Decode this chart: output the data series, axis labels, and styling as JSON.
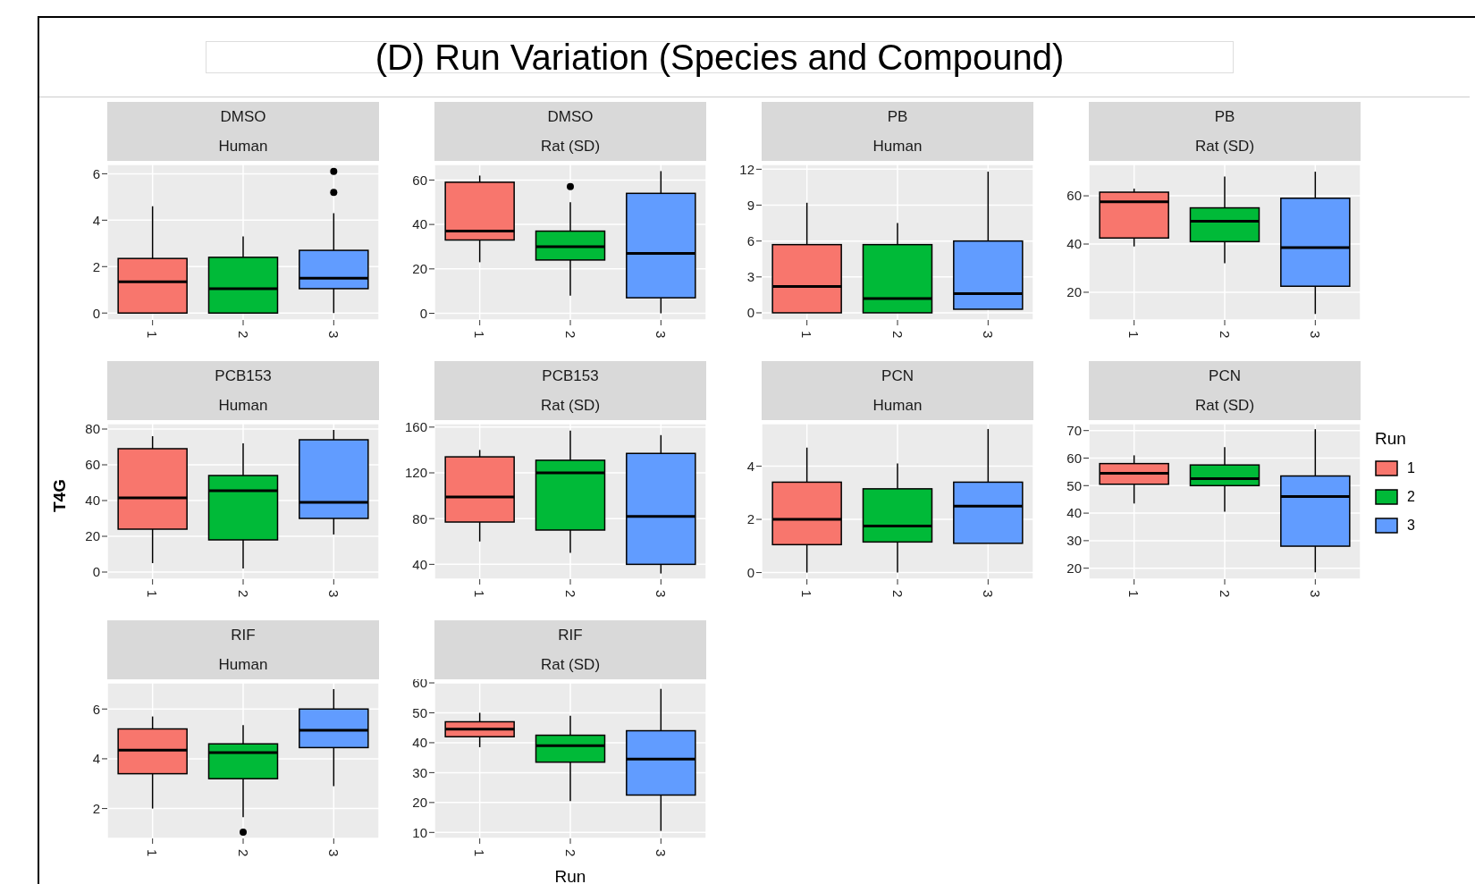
{
  "chart_data": [
    {
      "type": "box",
      "title": "DMSO",
      "subtitle": "Human",
      "annotations": [
        "(D) Run Variation (Species and Compound)"
      ],
      "categories": [
        "1",
        "2",
        "3"
      ],
      "grid": true,
      "ylim": [
        -0.3,
        6.4
      ],
      "yticks": [
        0,
        2,
        4,
        6
      ],
      "series": [
        {
          "color": "#f8766d",
          "boxes": [
            {
              "low": 0,
              "q1": 0,
              "median": 1.35,
              "q3": 2.35,
              "high": 4.6
            },
            null,
            null
          ]
        },
        {
          "color": "#00ba38",
          "boxes": [
            null,
            {
              "low": 0,
              "q1": 0,
              "median": 1.05,
              "q3": 2.4,
              "high": 3.3
            },
            null
          ]
        },
        {
          "color": "#619cff",
          "boxes": [
            null,
            null,
            {
              "low": 0,
              "q1": 1.05,
              "median": 1.5,
              "q3": 2.7,
              "high": 4.3,
              "outliers": [
                5.2,
                6.1
              ]
            }
          ]
        }
      ]
    },
    {
      "type": "box",
      "title": "DMSO",
      "subtitle": "Rat (SD)",
      "categories": [
        "1",
        "2",
        "3"
      ],
      "grid": true,
      "ylim": [
        -3,
        67
      ],
      "yticks": [
        0,
        20,
        40,
        60
      ],
      "series": [
        {
          "color": "#f8766d",
          "boxes": [
            {
              "low": 23,
              "q1": 33,
              "median": 37,
              "q3": 59,
              "high": 62
            },
            null,
            null
          ]
        },
        {
          "color": "#00ba38",
          "boxes": [
            null,
            {
              "low": 8,
              "q1": 24,
              "median": 30,
              "q3": 37,
              "high": 50,
              "outliers": [
                57
              ]
            },
            null
          ]
        },
        {
          "color": "#619cff",
          "boxes": [
            null,
            null,
            {
              "low": 0,
              "q1": 7,
              "median": 27,
              "q3": 54,
              "high": 64
            }
          ]
        }
      ]
    },
    {
      "type": "box",
      "title": "PB",
      "subtitle": "Human",
      "categories": [
        "1",
        "2",
        "3"
      ],
      "grid": true,
      "ylim": [
        -0.6,
        12.4
      ],
      "yticks": [
        0,
        3,
        6,
        9,
        12
      ],
      "series": [
        {
          "color": "#f8766d",
          "boxes": [
            {
              "low": 0,
              "q1": 0,
              "median": 2.2,
              "q3": 5.7,
              "high": 9.2
            },
            null,
            null
          ]
        },
        {
          "color": "#00ba38",
          "boxes": [
            null,
            {
              "low": 0,
              "q1": 0,
              "median": 1.2,
              "q3": 5.7,
              "high": 7.5
            },
            null
          ]
        },
        {
          "color": "#619cff",
          "boxes": [
            null,
            null,
            {
              "low": 0.3,
              "q1": 0.3,
              "median": 1.6,
              "q3": 6,
              "high": 11.8
            }
          ]
        }
      ]
    },
    {
      "type": "box",
      "title": "PB",
      "subtitle": "Rat (SD)",
      "categories": [
        "1",
        "2",
        "3"
      ],
      "grid": true,
      "ylim": [
        8.5,
        73
      ],
      "yticks": [
        20,
        40,
        60
      ],
      "series": [
        {
          "color": "#f8766d",
          "boxes": [
            {
              "low": 39,
              "q1": 42.5,
              "median": 57.5,
              "q3": 61.5,
              "high": 63
            },
            null,
            null
          ]
        },
        {
          "color": "#00ba38",
          "boxes": [
            null,
            {
              "low": 32,
              "q1": 41,
              "median": 49.5,
              "q3": 55,
              "high": 68
            },
            null
          ]
        },
        {
          "color": "#619cff",
          "boxes": [
            null,
            null,
            {
              "low": 11,
              "q1": 22.5,
              "median": 38.5,
              "q3": 59,
              "high": 70
            }
          ]
        }
      ]
    },
    {
      "type": "box",
      "title": "PCB153",
      "subtitle": "Human",
      "ylabel": "T4G",
      "categories": [
        "1",
        "2",
        "3"
      ],
      "grid": true,
      "ylim": [
        -4,
        83
      ],
      "yticks": [
        0,
        20,
        40,
        60,
        80
      ],
      "series": [
        {
          "color": "#f8766d",
          "boxes": [
            {
              "low": 5,
              "q1": 24,
              "median": 41.5,
              "q3": 69,
              "high": 76
            },
            null,
            null
          ]
        },
        {
          "color": "#00ba38",
          "boxes": [
            null,
            {
              "low": 2,
              "q1": 18,
              "median": 45.5,
              "q3": 54,
              "high": 72
            },
            null
          ]
        },
        {
          "color": "#619cff",
          "boxes": [
            null,
            null,
            {
              "low": 21,
              "q1": 30,
              "median": 39,
              "q3": 74,
              "high": 79.5
            }
          ]
        }
      ]
    },
    {
      "type": "box",
      "title": "PCB153",
      "subtitle": "Rat (SD)",
      "categories": [
        "1",
        "2",
        "3"
      ],
      "grid": true,
      "ylim": [
        27,
        163
      ],
      "yticks": [
        40,
        80,
        120,
        160
      ],
      "series": [
        {
          "color": "#f8766d",
          "boxes": [
            {
              "low": 60,
              "q1": 77,
              "median": 99,
              "q3": 134,
              "high": 140
            },
            null,
            null
          ]
        },
        {
          "color": "#00ba38",
          "boxes": [
            null,
            {
              "low": 50,
              "q1": 70,
              "median": 120,
              "q3": 131,
              "high": 157
            },
            null
          ]
        },
        {
          "color": "#619cff",
          "boxes": [
            null,
            null,
            {
              "low": 32,
              "q1": 40,
              "median": 82,
              "q3": 137,
              "high": 153
            }
          ]
        }
      ]
    },
    {
      "type": "box",
      "title": "PCN",
      "subtitle": "Human",
      "categories": [
        "1",
        "2",
        "3"
      ],
      "grid": true,
      "ylim": [
        -0.25,
        5.6
      ],
      "yticks": [
        0,
        2,
        4
      ],
      "series": [
        {
          "color": "#f8766d",
          "boxes": [
            {
              "low": 0,
              "q1": 1.05,
              "median": 2,
              "q3": 3.4,
              "high": 4.7
            },
            null,
            null
          ]
        },
        {
          "color": "#00ba38",
          "boxes": [
            null,
            {
              "low": 0,
              "q1": 1.15,
              "median": 1.75,
              "q3": 3.15,
              "high": 4.1
            },
            null
          ]
        },
        {
          "color": "#619cff",
          "boxes": [
            null,
            null,
            {
              "low": 1.1,
              "q1": 1.1,
              "median": 2.5,
              "q3": 3.4,
              "high": 5.4
            }
          ]
        }
      ]
    },
    {
      "type": "box",
      "title": "PCN",
      "subtitle": "Rat (SD)",
      "legend": "right",
      "legend_title": "Run",
      "categories": [
        "1",
        "2",
        "3"
      ],
      "grid": true,
      "ylim": [
        16,
        72.5
      ],
      "yticks": [
        20,
        30,
        40,
        50,
        60,
        70
      ],
      "series": [
        {
          "name": "1",
          "color": "#f8766d",
          "boxes": [
            {
              "low": 43.5,
              "q1": 50.5,
              "median": 54.5,
              "q3": 58,
              "high": 61
            },
            null,
            null
          ]
        },
        {
          "name": "2",
          "color": "#00ba38",
          "boxes": [
            null,
            {
              "low": 40.5,
              "q1": 50,
              "median": 52.5,
              "q3": 57.5,
              "high": 64
            },
            null
          ]
        },
        {
          "name": "3",
          "color": "#619cff",
          "boxes": [
            null,
            null,
            {
              "low": 18.5,
              "q1": 28,
              "median": 46,
              "q3": 53.5,
              "high": 70.5
            }
          ]
        }
      ]
    },
    {
      "type": "box",
      "title": "RIF",
      "subtitle": "Human",
      "categories": [
        "1",
        "2",
        "3"
      ],
      "grid": true,
      "ylim": [
        0.8,
        7.05
      ],
      "yticks": [
        2,
        4,
        6
      ],
      "series": [
        {
          "color": "#f8766d",
          "boxes": [
            {
              "low": 2,
              "q1": 3.4,
              "median": 4.35,
              "q3": 5.2,
              "high": 5.7
            },
            null,
            null
          ]
        },
        {
          "color": "#00ba38",
          "boxes": [
            null,
            {
              "low": 1.65,
              "q1": 3.2,
              "median": 4.25,
              "q3": 4.6,
              "high": 5.35,
              "outliers": [
                1.05
              ]
            },
            null
          ]
        },
        {
          "color": "#619cff",
          "boxes": [
            null,
            null,
            {
              "low": 2.9,
              "q1": 4.45,
              "median": 5.15,
              "q3": 6,
              "high": 6.8
            }
          ]
        }
      ]
    },
    {
      "type": "box",
      "title": "RIF",
      "subtitle": "Rat (SD)",
      "xlabel": "Run",
      "categories": [
        "1",
        "2",
        "3"
      ],
      "grid": true,
      "ylim": [
        8,
        60
      ],
      "yticks": [
        10,
        20,
        30,
        40,
        50,
        60
      ],
      "series": [
        {
          "color": "#f8766d",
          "boxes": [
            {
              "low": 38.5,
              "q1": 42,
              "median": 44.5,
              "q3": 47,
              "high": 50
            },
            null,
            null
          ]
        },
        {
          "color": "#00ba38",
          "boxes": [
            null,
            {
              "low": 20.5,
              "q1": 33.5,
              "median": 39,
              "q3": 42.5,
              "high": 49
            },
            null
          ]
        },
        {
          "color": "#619cff",
          "boxes": [
            null,
            null,
            {
              "low": 10.5,
              "q1": 22.5,
              "median": 34.5,
              "q3": 44,
              "high": 58
            }
          ]
        }
      ]
    }
  ]
}
